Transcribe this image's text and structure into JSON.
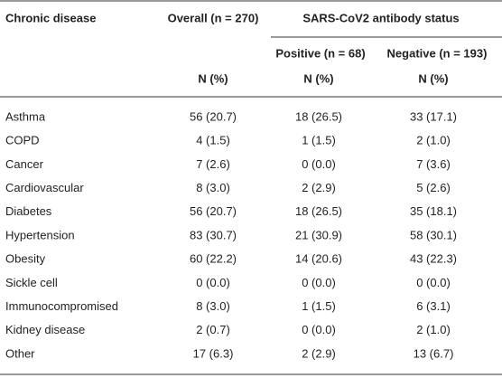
{
  "table": {
    "header": {
      "first": "Chronic disease",
      "overall": "Overall (n = 270)",
      "group": "SARS-CoV2 antibody status",
      "positive": "Positive (n = 68)",
      "negative": "Negative (n = 193)",
      "units": [
        "N (%)",
        "N (%)",
        "N (%)"
      ]
    },
    "rows": [
      [
        "Asthma",
        "56 (20.7)",
        "18 (26.5)",
        "33 (17.1)"
      ],
      [
        "COPD",
        "4 (1.5)",
        "1 (1.5)",
        "2 (1.0)"
      ],
      [
        "Cancer",
        "7 (2.6)",
        "0 (0.0)",
        "7 (3.6)"
      ],
      [
        "Cardiovascular",
        "8 (3.0)",
        "2 (2.9)",
        "5 (2.6)"
      ],
      [
        "Diabetes",
        "56 (20.7)",
        "18 (26.5)",
        "35 (18.1)"
      ],
      [
        "Hypertension",
        "83 (30.7)",
        "21 (30.9)",
        "58 (30.1)"
      ],
      [
        "Obesity",
        "60 (22.2)",
        "14 (20.6)",
        "43 (22.3)"
      ],
      [
        "Sickle cell",
        "0 (0.0)",
        "0 (0.0)",
        "0 (0.0)"
      ],
      [
        "Immunocompromised",
        "8 (3.0)",
        "1 (1.5)",
        "6 (3.1)"
      ],
      [
        "Kidney disease",
        "2 (0.7)",
        "0 (0.0)",
        "2 (1.0)"
      ],
      [
        "Other",
        "17 (6.3)",
        "2 (2.9)",
        "13 (6.7)"
      ]
    ]
  }
}
